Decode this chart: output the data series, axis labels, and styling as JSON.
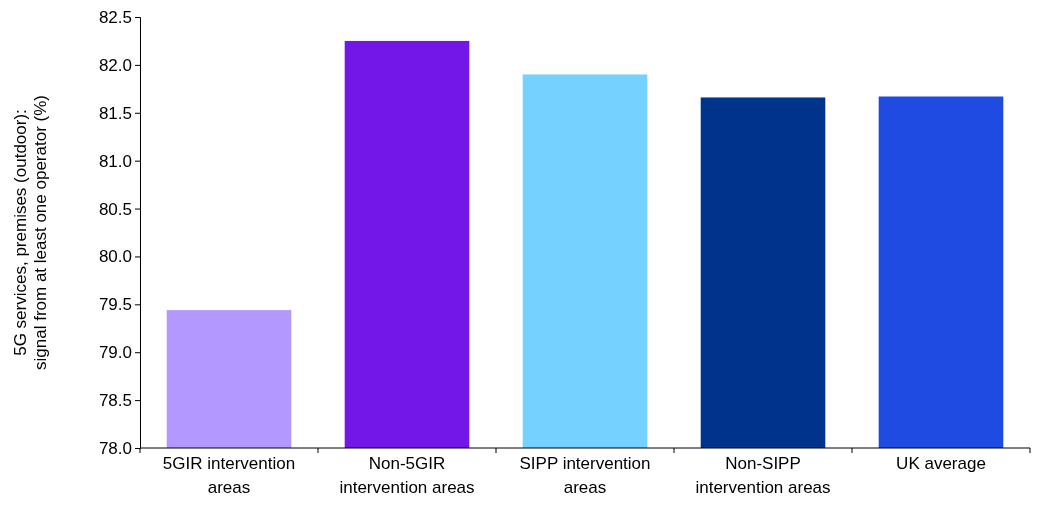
{
  "chart_data": {
    "type": "bar",
    "ylabel": "5G services, premises (outdoor): signal from at least one operator (%)",
    "categories": [
      "5GIR intervention areas",
      "Non-5GIR intervention areas",
      "SIPP intervention areas",
      "Non-SIPP intervention areas",
      "UK average"
    ],
    "values": [
      79.44,
      82.25,
      81.9,
      81.66,
      81.67
    ],
    "colors": [
      "#b399ff",
      "#7316e8",
      "#75d1ff",
      "#00338c",
      "#1f4be3"
    ],
    "ylim": [
      78.0,
      82.5
    ],
    "yticks": [
      {
        "value": 78,
        "label": "78.0"
      },
      {
        "value": 78.5,
        "label": "78.5"
      },
      {
        "value": 79,
        "label": "79.0"
      },
      {
        "value": 79.5,
        "label": "79.5"
      },
      {
        "value": 80,
        "label": "80.0"
      },
      {
        "value": 80.5,
        "label": "80.5"
      },
      {
        "value": 81,
        "label": "81.0"
      },
      {
        "value": 81.5,
        "label": "81.5"
      },
      {
        "value": 82,
        "label": "82.0"
      },
      {
        "value": 82.5,
        "label": "82.5"
      }
    ],
    "grid": false
  }
}
